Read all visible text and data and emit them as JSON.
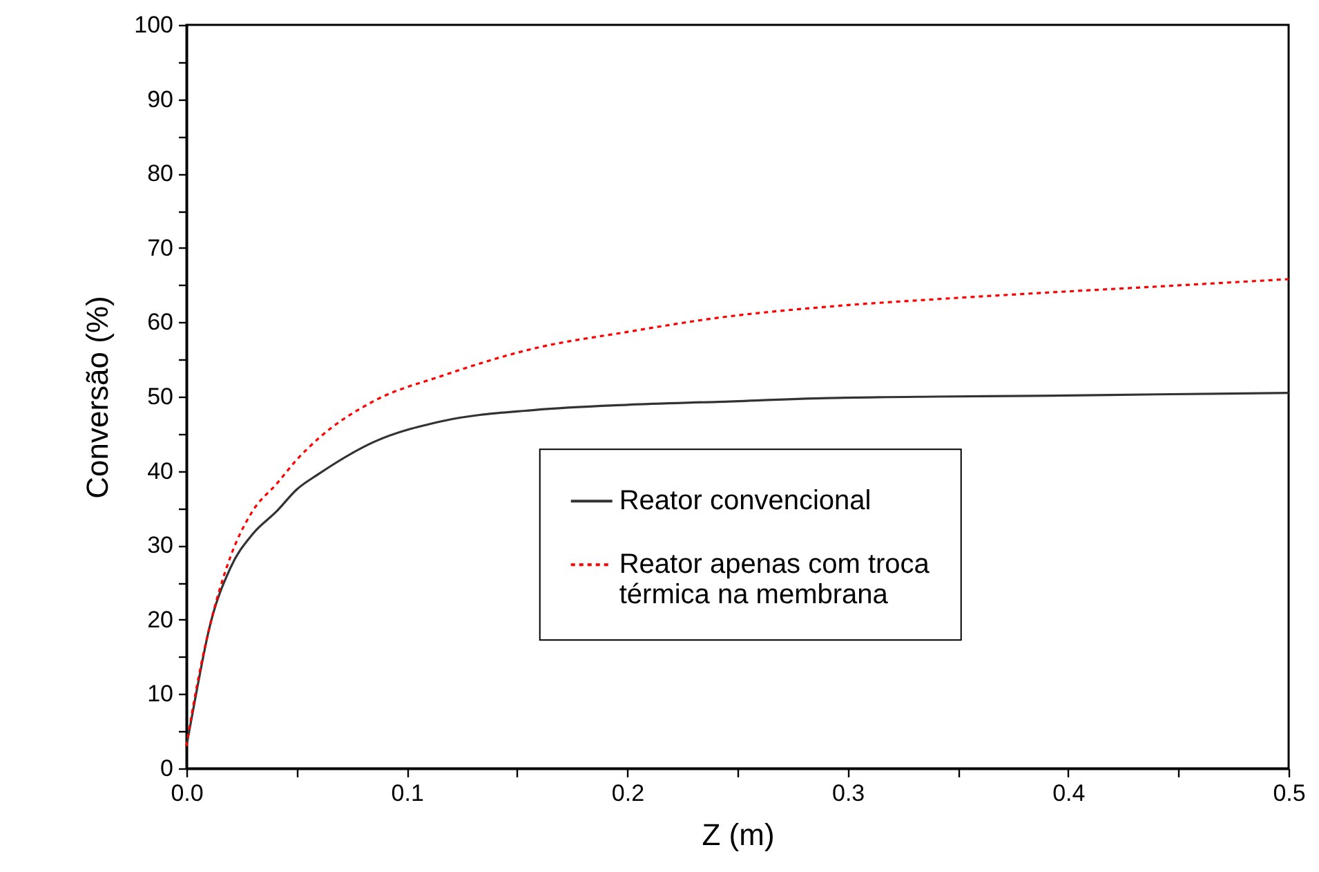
{
  "chart_data": {
    "type": "line",
    "xlabel": "Z (m)",
    "ylabel": "Conversão (%)",
    "x": [
      0,
      0.005,
      0.01,
      0.02,
      0.03,
      0.041,
      0.05,
      0.06,
      0.085,
      0.116,
      0.158,
      0.2,
      0.241,
      0.291,
      0.34,
      0.385,
      0.44,
      0.5
    ],
    "series": [
      {
        "name": "Reator convencional",
        "color": "#333333",
        "line_style": "solid",
        "values": [
          3,
          11,
          18.4,
          27,
          31.5,
          34.6,
          37.5,
          39.6,
          43.9,
          46.7,
          48.2,
          48.9,
          49.3,
          49.8,
          50,
          50.1,
          50.3,
          50.5
        ]
      },
      {
        "name": "Reator apenas com troca térmica na membrana",
        "color": "#ff0000",
        "line_style": "dotted",
        "values": [
          3,
          11.5,
          18.4,
          28.5,
          34.6,
          38.3,
          41.5,
          44.4,
          49.4,
          52.8,
          56.5,
          58.7,
          60.6,
          62.1,
          63.1,
          63.9,
          64.8,
          65.8
        ]
      }
    ],
    "xlim": [
      0,
      0.5
    ],
    "ylim": [
      0,
      100
    ],
    "xticks": [
      {
        "value": 0,
        "label": "0.0"
      },
      {
        "value": 0.05,
        "label": null
      },
      0.1,
      {
        "value": 0.15,
        "label": null
      },
      0.2,
      {
        "value": 0.25,
        "label": null
      },
      0.3,
      {
        "value": 0.35,
        "label": null
      },
      0.4,
      {
        "value": 0.45,
        "label": null
      },
      0.5
    ],
    "yticks": [
      0,
      {
        "value": 5,
        "label": null
      },
      10,
      {
        "value": 15,
        "label": null
      },
      20,
      {
        "value": 25,
        "label": null
      },
      30,
      {
        "value": 35,
        "label": null
      },
      40,
      {
        "value": 45,
        "label": null
      },
      50,
      {
        "value": 55,
        "label": null
      },
      60,
      {
        "value": 65,
        "label": null
      },
      70,
      {
        "value": 75,
        "label": null
      },
      80,
      {
        "value": 85,
        "label": null
      },
      90,
      {
        "value": 95,
        "label": null
      },
      100
    ],
    "legend": "right",
    "grid": false
  }
}
